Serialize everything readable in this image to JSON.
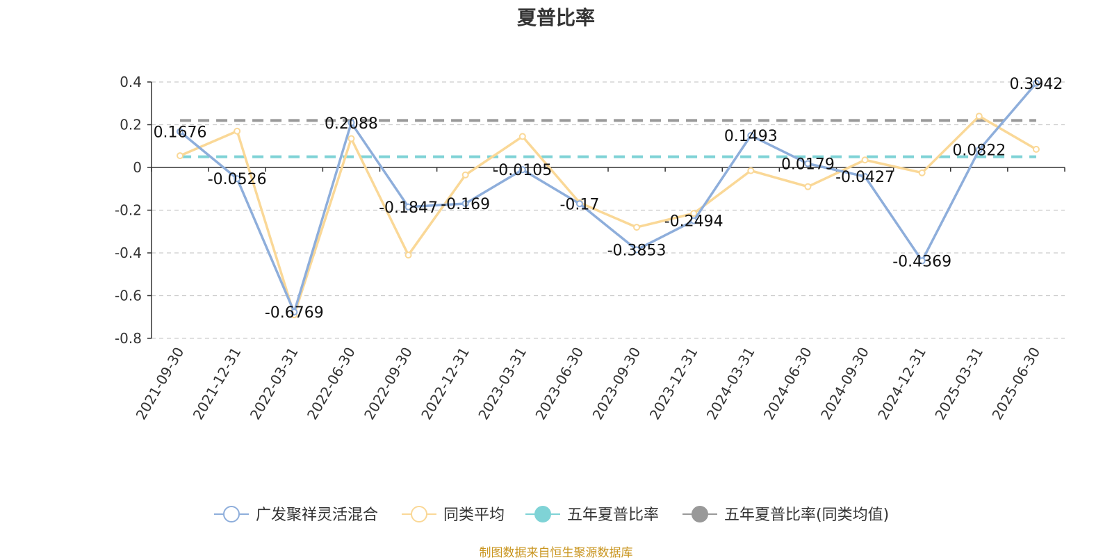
{
  "title": "夏普比率",
  "source_note": "制图数据来自恒生聚源数据库",
  "chart_data": {
    "type": "line",
    "title": "夏普比率",
    "categories": [
      "2021-09-30",
      "2021-12-31",
      "2022-03-31",
      "2022-06-30",
      "2022-09-30",
      "2022-12-31",
      "2023-03-31",
      "2023-06-30",
      "2023-09-30",
      "2023-12-31",
      "2024-03-31",
      "2024-06-30",
      "2024-09-30",
      "2024-12-31",
      "2025-03-31",
      "2025-06-30"
    ],
    "yticks": [
      0.4,
      0.2,
      0,
      -0.2,
      -0.4,
      -0.6,
      -0.8
    ],
    "ytick_labels": [
      "0.4",
      "0.2",
      "0",
      "-0.2",
      "-0.4",
      "-0.6",
      "-0.8"
    ],
    "ylim": [
      -0.8,
      0.4
    ],
    "grid": true,
    "legend_position": "bottom",
    "series": [
      {
        "name": "广发聚祥灵活混合",
        "color": "#8eaedb",
        "values": [
          0.1676,
          -0.0526,
          -0.6769,
          0.2088,
          -0.1847,
          -0.169,
          -0.0105,
          -0.17,
          -0.3853,
          -0.2494,
          0.1493,
          0.0179,
          -0.0427,
          -0.4369,
          0.0822,
          0.3942
        ],
        "labels": [
          "0.1676",
          "-0.0526",
          "-0.6769",
          "0.2088",
          "-0.1847",
          "-0.169",
          "-0.0105",
          "-0.17",
          "-0.3853",
          "-0.2494",
          "0.1493",
          "0.0179",
          "-0.0427",
          "-0.4369",
          "0.0822",
          "0.3942"
        ]
      },
      {
        "name": "同类平均",
        "color": "#fad897",
        "values": [
          0.055,
          0.17,
          -0.69,
          0.135,
          -0.41,
          -0.035,
          0.145,
          -0.165,
          -0.28,
          -0.215,
          -0.015,
          -0.09,
          0.035,
          -0.025,
          0.24,
          0.085
        ]
      }
    ],
    "reference_lines": [
      {
        "name": "五年夏普比率",
        "value": 0.05,
        "color": "#7fd3d6"
      },
      {
        "name": "五年夏普比率(同类均值)",
        "value": 0.22,
        "color": "#999999"
      }
    ]
  }
}
